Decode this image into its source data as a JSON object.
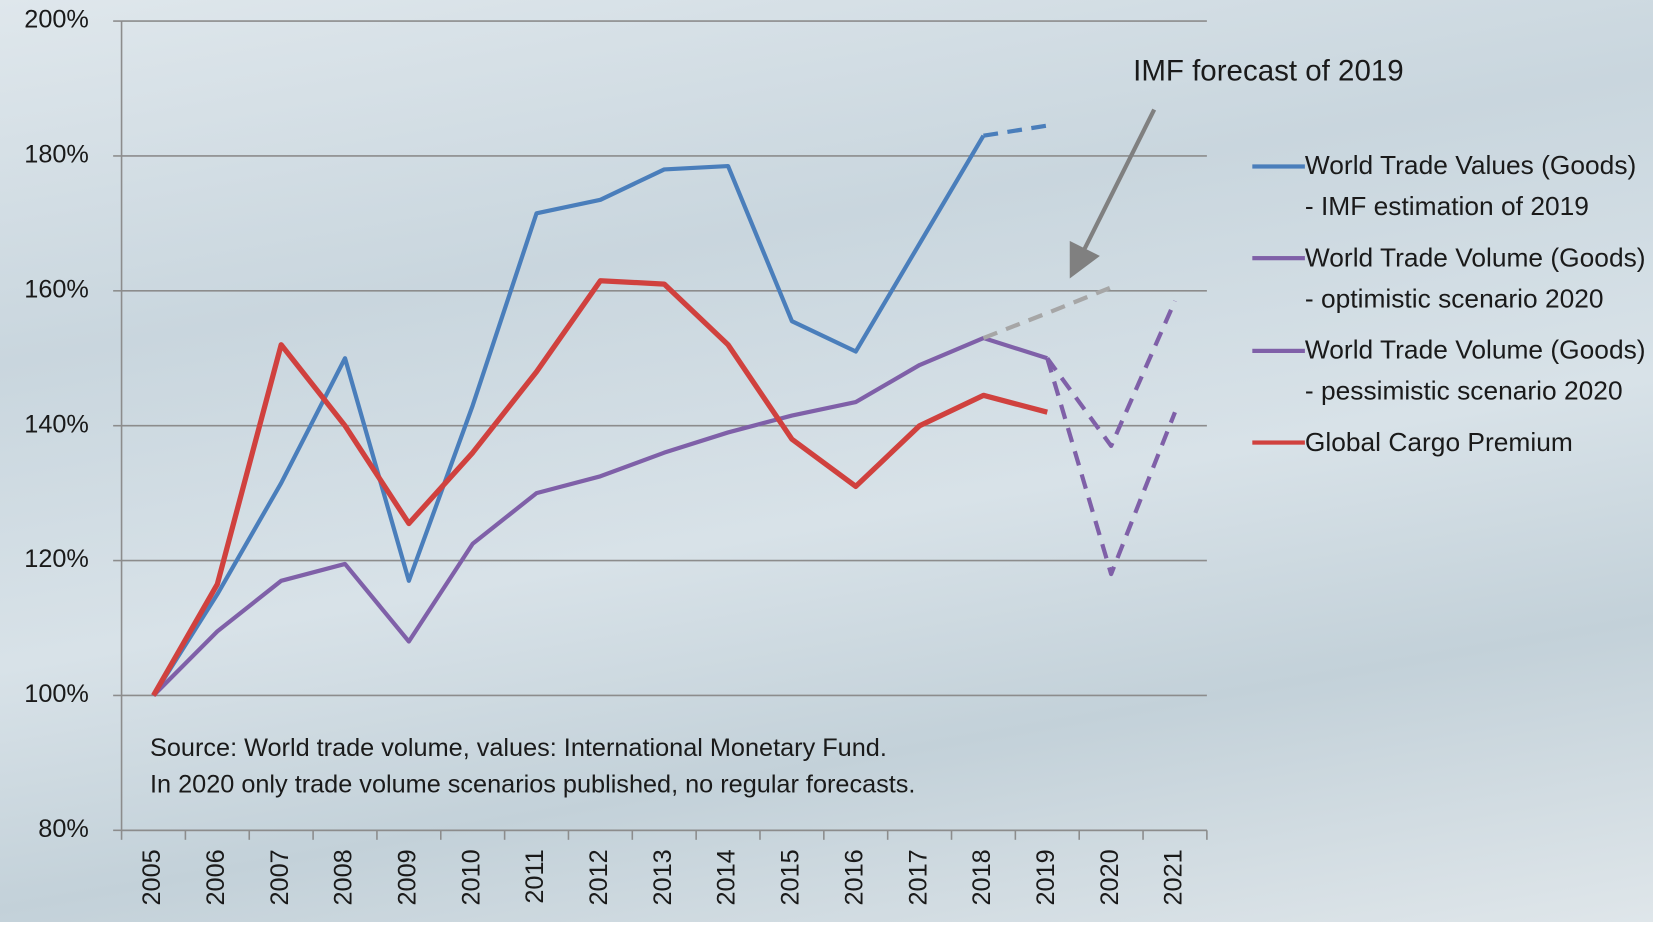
{
  "chart_data": {
    "type": "line",
    "categories": [
      "2005",
      "2006",
      "2007",
      "2008",
      "2009",
      "2010",
      "2011",
      "2012",
      "2013",
      "2014",
      "2015",
      "2016",
      "2017",
      "2018",
      "2019",
      "2020",
      "2021"
    ],
    "series": [
      {
        "name": "World Trade Values (Goods) - IMF estimation of 2019",
        "color": "#4a7ebb",
        "dash_from": 13,
        "values": [
          100,
          115,
          131.5,
          150,
          117,
          143,
          171.5,
          173.5,
          178,
          178.5,
          155.5,
          151,
          167,
          183,
          184.5,
          null,
          null
        ]
      },
      {
        "name": "World Trade Volume (Goods) - optimistic scenario 2020",
        "color": "#7f60a8",
        "dash_from": 14,
        "values": [
          100,
          109.5,
          117,
          119.5,
          108,
          122.5,
          130,
          132.5,
          136,
          139,
          141.5,
          143.5,
          149,
          153,
          150,
          137,
          158.5
        ]
      },
      {
        "name": "World Trade Volume (Goods) - pessimistic scenario 2020",
        "color": "#7f60a8",
        "dash_from": 14,
        "values": [
          null,
          null,
          null,
          null,
          null,
          null,
          null,
          null,
          null,
          null,
          null,
          null,
          null,
          null,
          150,
          118,
          142
        ]
      },
      {
        "name": "Global Cargo Premium",
        "color": "#d0413e",
        "values": [
          100,
          116.5,
          152,
          140,
          125.5,
          136,
          148,
          161.5,
          161,
          152,
          138,
          131,
          140,
          144.5,
          142,
          null,
          null
        ]
      },
      {
        "color": "#a6a6a6",
        "dash_from": 13,
        "in_legend": false,
        "values": [
          null,
          null,
          null,
          null,
          null,
          null,
          null,
          null,
          null,
          null,
          null,
          null,
          null,
          153,
          156.7,
          160.5,
          null
        ]
      }
    ],
    "ylim": [
      80,
      200
    ],
    "yticks": [
      {
        "value": 80,
        "label": "80%"
      },
      {
        "value": 100,
        "label": "100%"
      },
      {
        "value": 120,
        "label": "120%"
      },
      {
        "value": 140,
        "label": "140%"
      },
      {
        "value": 160,
        "label": "160%"
      },
      {
        "value": 180,
        "label": "180%"
      },
      {
        "value": 200,
        "label": "200%"
      }
    ],
    "grid": true,
    "legend": "right",
    "annotations": [
      "IMF forecast of 2019",
      "Source: World trade volume, values: International Monetary Fund.",
      "In 2020 only trade volume scenarios published, no regular forecasts."
    ]
  }
}
